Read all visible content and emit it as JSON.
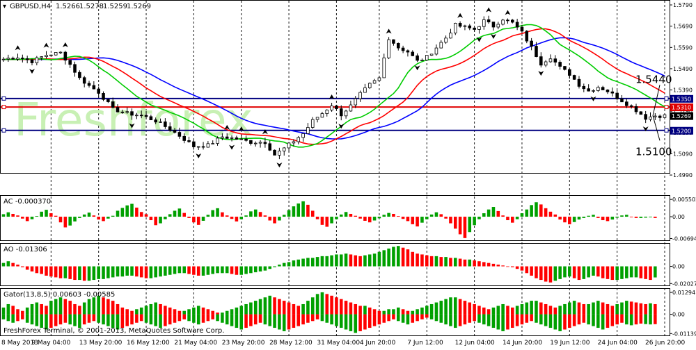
{
  "header": {
    "symbol": "GBPUSD,H4",
    "open": "1.5266",
    "high": "1.5278",
    "low": "1.5259",
    "close": "1.5269"
  },
  "watermark": "Freshforex",
  "footer": "FreshForex Terminal, © 2001-2013, MetaQuotes Software Corp.",
  "colors": {
    "background": "#ffffff",
    "grid": "#000000",
    "candle": "#000000",
    "jaw": "#0000ff",
    "teeth": "#ff0000",
    "lips": "#00cc00",
    "level_blue": "#000080",
    "level_red": "#e00000",
    "bar_up": "#00a000",
    "bar_down": "#ff0000",
    "watermark": "#c8f0b4"
  },
  "chart_data": [
    {
      "type": "candlestick",
      "title": "GBPUSD,H4",
      "ylim": [
        1.5,
        1.58
      ],
      "price_ticks": [
        "1.5790",
        "1.5690",
        "1.5590",
        "1.5490",
        "1.5390",
        "1.5290",
        "1.5190",
        "1.5090",
        "1.4990"
      ],
      "date_labels": [
        "8 May 2013",
        "9 May 04:00",
        "13 May 20:00",
        "16 May 12:00",
        "21 May 04:00",
        "23 May 20:00",
        "28 May 12:00",
        "31 May 04:00",
        "4 Jun 20:00",
        "7 Jun 12:00",
        "12 Jun 04:00",
        "14 Jun 20:00",
        "19 Jun 12:00",
        "24 Jun 04:00",
        "26 Jun 20:00"
      ],
      "price_path": [
        [
          0,
          1.5535
        ],
        [
          3,
          1.5545
        ],
        [
          6,
          1.5525
        ],
        [
          9,
          1.5555
        ],
        [
          12,
          1.5565
        ],
        [
          14,
          1.551
        ],
        [
          16,
          1.5445
        ],
        [
          18,
          1.541
        ],
        [
          20,
          1.538
        ],
        [
          23,
          1.53
        ],
        [
          26,
          1.528
        ],
        [
          29,
          1.527
        ],
        [
          32,
          1.5245
        ],
        [
          35,
          1.5205
        ],
        [
          37,
          1.5175
        ],
        [
          40,
          1.5125
        ],
        [
          43,
          1.513
        ],
        [
          46,
          1.517
        ],
        [
          49,
          1.516
        ],
        [
          52,
          1.5145
        ],
        [
          55,
          1.5145
        ],
        [
          57,
          1.5085
        ],
        [
          59,
          1.5115
        ],
        [
          61,
          1.515
        ],
        [
          63,
          1.5185
        ],
        [
          65,
          1.5245
        ],
        [
          67,
          1.528
        ],
        [
          69,
          1.532
        ],
        [
          71,
          1.5275
        ],
        [
          73,
          1.5315
        ],
        [
          75,
          1.537
        ],
        [
          77,
          1.5415
        ],
        [
          79,
          1.5445
        ],
        [
          81,
          1.5635
        ],
        [
          83,
          1.559
        ],
        [
          85,
          1.557
        ],
        [
          87,
          1.5525
        ],
        [
          89,
          1.5545
        ],
        [
          91,
          1.559
        ],
        [
          93,
          1.5635
        ],
        [
          95,
          1.5695
        ],
        [
          97,
          1.5685
        ],
        [
          99,
          1.5675
        ],
        [
          101,
          1.5715
        ],
        [
          103,
          1.569
        ],
        [
          105,
          1.5725
        ],
        [
          107,
          1.5705
        ],
        [
          109,
          1.566
        ],
        [
          111,
          1.559
        ],
        [
          113,
          1.5515
        ],
        [
          115,
          1.5545
        ],
        [
          117,
          1.5495
        ],
        [
          119,
          1.5465
        ],
        [
          121,
          1.5415
        ],
        [
          123,
          1.5385
        ],
        [
          125,
          1.5405
        ],
        [
          127,
          1.5385
        ],
        [
          129,
          1.5355
        ],
        [
          131,
          1.5325
        ],
        [
          133,
          1.5295
        ],
        [
          135,
          1.5259
        ],
        [
          137,
          1.5269
        ]
      ],
      "series": [
        {
          "name": "jaw",
          "color": "#0000ff"
        },
        {
          "name": "teeth",
          "color": "#ff0000"
        },
        {
          "name": "lips",
          "color": "#00cc00"
        }
      ],
      "levels": [
        {
          "value": 1.535,
          "label": "1.5350",
          "color": "#000080"
        },
        {
          "value": 1.531,
          "label": "1.5310",
          "color": "#e00000"
        },
        {
          "value": 1.5269,
          "label": "1.5269",
          "color": "#000000"
        },
        {
          "value": 1.52,
          "label": "1.5200",
          "color": "#000080"
        }
      ],
      "annotations": [
        {
          "text": "1.5440",
          "price": 1.544
        },
        {
          "text": "1.5100",
          "price": 1.51
        }
      ]
    },
    {
      "type": "bar",
      "title": "AC -0.000370",
      "ticks": [
        "0.005502",
        "0.00",
        "-0.00694"
      ],
      "ylim": [
        -0.0075,
        0.0062
      ],
      "values": [
        0.0008,
        0.0014,
        0.0009,
        0.0004,
        -0.0006,
        -0.0014,
        -0.0008,
        0.0002,
        0.0016,
        0.0022,
        0.0011,
        0.0003,
        -0.0018,
        -0.0034,
        -0.0028,
        -0.0015,
        -0.0004,
        0.0007,
        0.0013,
        0.0004,
        -0.0009,
        -0.0014,
        -0.0006,
        0.0003,
        0.0019,
        0.0028,
        0.0036,
        0.0041,
        0.0029,
        0.0015,
        0.0008,
        -0.0011,
        -0.0027,
        -0.0021,
        -0.0008,
        0.0008,
        0.0019,
        0.0026,
        0.0012,
        -0.0004,
        -0.0018,
        -0.0026,
        -0.0013,
        0.0006,
        0.0021,
        0.0027,
        0.0014,
        0.0004,
        -0.0007,
        -0.0015,
        -0.0008,
        0.0004,
        0.0017,
        0.0023,
        0.0015,
        0.0004,
        -0.0012,
        -0.0021,
        -0.0012,
        0.0006,
        0.0021,
        0.0033,
        0.0042,
        0.0049,
        0.0038,
        0.0019,
        -0.0008,
        -0.0026,
        -0.0032,
        -0.0021,
        -0.0008,
        0.0007,
        0.0015,
        0.0009,
        0.0003,
        -0.0006,
        -0.0013,
        -0.0018,
        -0.0012,
        -0.0005,
        0.0006,
        0.0012,
        0.0009,
        0.0002,
        -0.0007,
        -0.0014,
        -0.0024,
        -0.0031,
        -0.0019,
        -0.0008,
        0.0007,
        0.0014,
        0.0008,
        -0.0006,
        -0.0021,
        -0.0038,
        -0.0056,
        -0.0068,
        -0.0049,
        -0.0027,
        -0.0008,
        0.0011,
        0.0023,
        0.0031,
        0.0018,
        0.0004,
        -0.0011,
        -0.0019,
        -0.0008,
        0.0011,
        0.0023,
        0.0037,
        0.0046,
        0.0039,
        0.0027,
        0.0016,
        0.0007,
        -0.0009,
        -0.0018,
        -0.0024,
        -0.0017,
        -0.0009,
        -0.0004,
        0.0003,
        0.0006,
        -0.0004,
        -0.0011,
        -0.0014,
        -0.0009,
        -0.0003,
        0.0004,
        0.0006,
        -0.0002,
        -0.0004,
        -0.0004,
        -0.0003,
        -0.0002,
        -0.0004
      ]
    },
    {
      "type": "bar",
      "title": "AO -0.01306",
      "ticks": [
        "0.00",
        "-0.02027"
      ],
      "ylim": [
        -0.0225,
        0.025
      ],
      "values": [
        0.004,
        0.006,
        0.004,
        0.002,
        -0.001,
        -0.004,
        -0.006,
        -0.008,
        -0.009,
        -0.011,
        -0.012,
        -0.013,
        -0.014,
        -0.014,
        -0.015,
        -0.016,
        -0.016,
        -0.017,
        -0.017,
        -0.016,
        -0.015,
        -0.015,
        -0.014,
        -0.013,
        -0.012,
        -0.012,
        -0.011,
        -0.011,
        -0.012,
        -0.013,
        -0.014,
        -0.014,
        -0.013,
        -0.012,
        -0.011,
        -0.01,
        -0.009,
        -0.008,
        -0.008,
        -0.009,
        -0.01,
        -0.011,
        -0.011,
        -0.01,
        -0.009,
        -0.008,
        -0.008,
        -0.008,
        -0.009,
        -0.01,
        -0.01,
        -0.009,
        -0.008,
        -0.007,
        -0.006,
        -0.005,
        -0.003,
        -0.001,
        0.002,
        0.004,
        0.005,
        0.007,
        0.008,
        0.009,
        0.01,
        0.01,
        0.011,
        0.012,
        0.012,
        0.013,
        0.014,
        0.014,
        0.015,
        0.014,
        0.013,
        0.012,
        0.013,
        0.014,
        0.015,
        0.017,
        0.019,
        0.021,
        0.023,
        0.024,
        0.022,
        0.02,
        0.017,
        0.015,
        0.014,
        0.013,
        0.012,
        0.012,
        0.011,
        0.011,
        0.01,
        0.01,
        0.009,
        0.008,
        0.008,
        0.007,
        0.006,
        0.005,
        0.004,
        0.003,
        0.002,
        0.001,
        0.0,
        -0.001,
        -0.003,
        -0.005,
        -0.008,
        -0.011,
        -0.014,
        -0.016,
        -0.018,
        -0.019,
        -0.017,
        -0.015,
        -0.013,
        -0.012,
        -0.014,
        -0.016,
        -0.015,
        -0.013,
        -0.011,
        -0.012,
        -0.014,
        -0.015,
        -0.016,
        -0.016,
        -0.015,
        -0.014,
        -0.013,
        -0.013,
        -0.014,
        -0.015,
        -0.016,
        -0.0131
      ]
    },
    {
      "type": "bar",
      "title": "Gator(13,8,5) 0.00603 -0.00585",
      "ticks": [
        "0.01294",
        "0.00",
        "-0.01139"
      ],
      "ylim": [
        -0.0125,
        0.0142
      ],
      "upper": [
        0.004,
        0.006,
        0.005,
        0.003,
        0.002,
        0.004,
        0.006,
        0.007,
        0.006,
        0.005,
        0.008,
        0.009,
        0.01,
        0.009,
        0.008,
        0.006,
        0.005,
        0.007,
        0.009,
        0.01,
        0.011,
        0.01,
        0.009,
        0.008,
        0.006,
        0.004,
        0.003,
        0.002,
        0.003,
        0.004,
        0.005,
        0.006,
        0.007,
        0.006,
        0.005,
        0.004,
        0.003,
        0.002,
        0.002,
        0.003,
        0.004,
        0.005,
        0.004,
        0.003,
        0.002,
        0.001,
        0.001,
        0.002,
        0.003,
        0.004,
        0.005,
        0.006,
        0.007,
        0.008,
        0.009,
        0.01,
        0.011,
        0.01,
        0.009,
        0.008,
        0.007,
        0.006,
        0.005,
        0.006,
        0.008,
        0.01,
        0.012,
        0.013,
        0.012,
        0.011,
        0.01,
        0.009,
        0.008,
        0.007,
        0.006,
        0.005,
        0.005,
        0.004,
        0.003,
        0.002,
        0.002,
        0.003,
        0.003,
        0.004,
        0.003,
        0.002,
        0.002,
        0.003,
        0.004,
        0.005,
        0.006,
        0.007,
        0.008,
        0.009,
        0.01,
        0.01,
        0.009,
        0.008,
        0.007,
        0.006,
        0.005,
        0.004,
        0.003,
        0.004,
        0.005,
        0.006,
        0.005,
        0.004,
        0.005,
        0.006,
        0.007,
        0.008,
        0.008,
        0.007,
        0.006,
        0.005,
        0.004,
        0.005,
        0.006,
        0.007,
        0.008,
        0.007,
        0.006,
        0.006,
        0.007,
        0.008,
        0.007,
        0.006,
        0.005,
        0.006,
        0.007,
        0.008,
        0.0075,
        0.007,
        0.0065,
        0.006,
        0.0065,
        0.006
      ],
      "lower": [
        -0.003,
        -0.004,
        -0.005,
        -0.004,
        -0.003,
        -0.005,
        -0.006,
        -0.007,
        -0.008,
        -0.009,
        -0.008,
        -0.007,
        -0.006,
        -0.005,
        -0.006,
        -0.007,
        -0.008,
        -0.006,
        -0.005,
        -0.004,
        -0.005,
        -0.006,
        -0.007,
        -0.008,
        -0.009,
        -0.008,
        -0.007,
        -0.006,
        -0.005,
        -0.004,
        -0.005,
        -0.006,
        -0.007,
        -0.008,
        -0.007,
        -0.006,
        -0.005,
        -0.004,
        -0.003,
        -0.004,
        -0.005,
        -0.006,
        -0.005,
        -0.004,
        -0.003,
        -0.004,
        -0.005,
        -0.006,
        -0.007,
        -0.008,
        -0.009,
        -0.008,
        -0.007,
        -0.006,
        -0.005,
        -0.006,
        -0.007,
        -0.008,
        -0.009,
        -0.01,
        -0.009,
        -0.008,
        -0.007,
        -0.006,
        -0.005,
        -0.004,
        -0.003,
        -0.004,
        -0.005,
        -0.006,
        -0.007,
        -0.008,
        -0.009,
        -0.01,
        -0.011,
        -0.01,
        -0.009,
        -0.008,
        -0.007,
        -0.006,
        -0.005,
        -0.004,
        -0.003,
        -0.004,
        -0.005,
        -0.006,
        -0.005,
        -0.004,
        -0.003,
        -0.002,
        -0.003,
        -0.004,
        -0.005,
        -0.006,
        -0.007,
        -0.008,
        -0.007,
        -0.006,
        -0.005,
        -0.004,
        -0.005,
        -0.006,
        -0.007,
        -0.008,
        -0.009,
        -0.01,
        -0.009,
        -0.008,
        -0.007,
        -0.006,
        -0.005,
        -0.004,
        -0.005,
        -0.006,
        -0.007,
        -0.008,
        -0.009,
        -0.01,
        -0.009,
        -0.008,
        -0.007,
        -0.006,
        -0.005,
        -0.006,
        -0.007,
        -0.008,
        -0.009,
        -0.008,
        -0.007,
        -0.006,
        -0.005,
        -0.006,
        -0.0065,
        -0.006,
        -0.0055,
        -0.0058,
        -0.006,
        -0.00585
      ]
    }
  ]
}
